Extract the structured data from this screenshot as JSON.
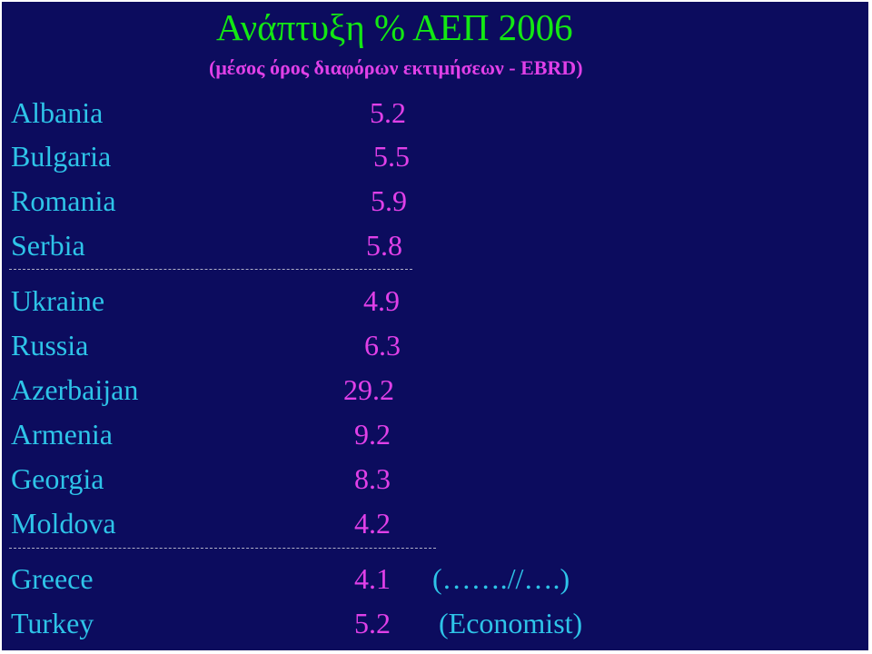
{
  "title": "Ανάπτυξη % ΑΕΠ 2006",
  "subtitle": "(μέσος όρος διαφόρων  εκτιμήσεων - EBRD)",
  "group1": [
    {
      "country": "Albania",
      "value": "5.2"
    },
    {
      "country": "Bulgaria",
      "value": "5.5"
    },
    {
      "country": "Romania",
      "value": "5.9"
    },
    {
      "country": "Serbia",
      "value": "5.8"
    }
  ],
  "group2": [
    {
      "country": "Ukraine",
      "value": "4.9"
    },
    {
      "country": "Russia",
      "value": "6.3"
    },
    {
      "country": "Azerbaijan",
      "value": "29.2"
    },
    {
      "country": "Armenia",
      "value": "9.2"
    },
    {
      "country": "Georgia",
      "value": "8.3"
    },
    {
      "country": "Moldova",
      "value": "4.2"
    }
  ],
  "group3": [
    {
      "country": "Greece",
      "value": "4.1",
      "note": "(…….//….)"
    },
    {
      "country": "Turkey",
      "value": "5.2",
      "note": "(Economist)"
    }
  ],
  "colors": {
    "background": "#0c0c5e",
    "title": "#13e813",
    "values": "#e040e8",
    "countries": "#2ec4e8"
  }
}
